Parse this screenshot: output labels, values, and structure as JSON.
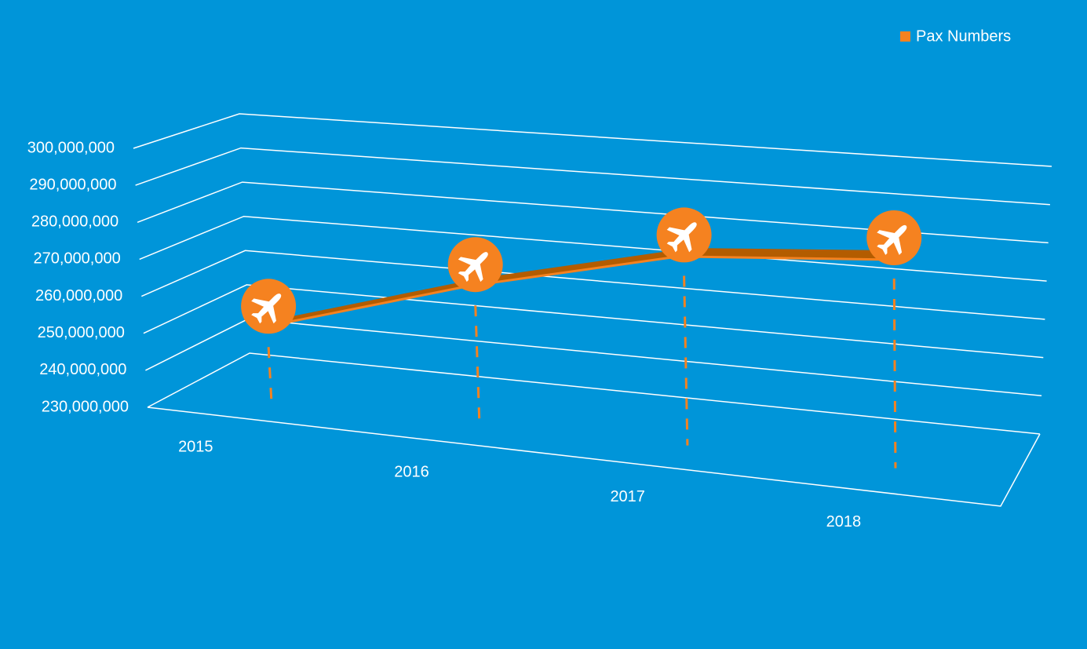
{
  "chart_data": {
    "type": "line3d",
    "categories": [
      "2015",
      "2016",
      "2017",
      "2018"
    ],
    "series": [
      {
        "name": "Pax Numbers",
        "color": "#f58220",
        "values": [
          248000000,
          265000000,
          278000000,
          282000000
        ]
      }
    ],
    "ylim": [
      230000000,
      300000000
    ],
    "yticks": [
      {
        "value": 230000000,
        "label": "230,000,000"
      },
      {
        "value": 240000000,
        "label": "240,000,000"
      },
      {
        "value": 250000000,
        "label": "250,000,000"
      },
      {
        "value": 260000000,
        "label": "260,000,000"
      },
      {
        "value": 270000000,
        "label": "270,000,000"
      },
      {
        "value": 280000000,
        "label": "280,000,000"
      },
      {
        "value": 290000000,
        "label": "290,000,000"
      },
      {
        "value": 300000000,
        "label": "300,000,000"
      }
    ],
    "grid": true,
    "legend": "top-right"
  }
}
